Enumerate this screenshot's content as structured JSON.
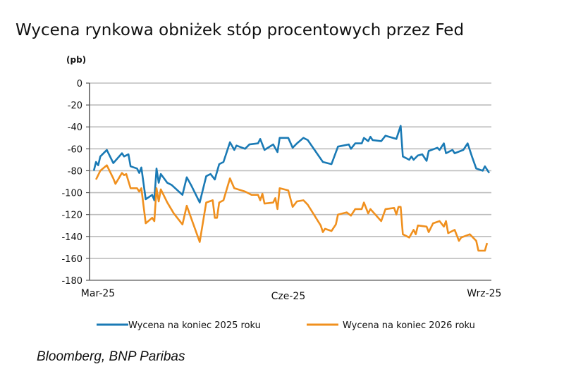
{
  "chart_data": {
    "type": "line",
    "title": "Wycena rynkowa obniżek stóp procentowych przez Fed",
    "ylabel": "(pb)",
    "xlabel": "",
    "ylim": [
      -180,
      0
    ],
    "yticks": [
      0,
      -20,
      -40,
      -60,
      -80,
      -100,
      -120,
      -140,
      -160,
      -180
    ],
    "xlim": [
      "2025-03-01",
      "2025-09-03"
    ],
    "xticks": [
      {
        "date": "2025-03-01",
        "label": "Mar-25"
      },
      {
        "date": "2025-06-01",
        "label": "Cze-25"
      },
      {
        "date": "2025-09-01",
        "label": "Wrz-25"
      }
    ],
    "grid": "horizontal",
    "legend_position": "bottom",
    "source": "Bloomberg, BNP Paribas",
    "series": [
      {
        "name": "Wycena na koniec 2025 roku",
        "color": "#1a7ab5",
        "points": [
          [
            "2025-03-03",
            -80
          ],
          [
            "2025-03-04",
            -72
          ],
          [
            "2025-03-05",
            -75
          ],
          [
            "2025-03-06",
            -67
          ],
          [
            "2025-03-09",
            -61
          ],
          [
            "2025-03-12",
            -73
          ],
          [
            "2025-03-16",
            -64
          ],
          [
            "2025-03-17",
            -67
          ],
          [
            "2025-03-19",
            -65
          ],
          [
            "2025-03-20",
            -76
          ],
          [
            "2025-03-23",
            -78
          ],
          [
            "2025-03-24",
            -82
          ],
          [
            "2025-03-25",
            -77
          ],
          [
            "2025-03-27",
            -106
          ],
          [
            "2025-03-30",
            -102
          ],
          [
            "2025-03-31",
            -107
          ],
          [
            "2025-04-01",
            -78
          ],
          [
            "2025-04-02",
            -91
          ],
          [
            "2025-04-03",
            -83
          ],
          [
            "2025-04-06",
            -91
          ],
          [
            "2025-04-08",
            -93
          ],
          [
            "2025-04-13",
            -102
          ],
          [
            "2025-04-15",
            -86
          ],
          [
            "2025-04-17",
            -93
          ],
          [
            "2025-04-21",
            -109
          ],
          [
            "2025-04-24",
            -85
          ],
          [
            "2025-04-26",
            -83
          ],
          [
            "2025-04-28",
            -88
          ],
          [
            "2025-04-30",
            -74
          ],
          [
            "2025-05-02",
            -72
          ],
          [
            "2025-05-05",
            -54
          ],
          [
            "2025-05-07",
            -61
          ],
          [
            "2025-05-08",
            -57
          ],
          [
            "2025-05-12",
            -60
          ],
          [
            "2025-05-14",
            -56
          ],
          [
            "2025-05-18",
            -55
          ],
          [
            "2025-05-19",
            -51
          ],
          [
            "2025-05-21",
            -61
          ],
          [
            "2025-05-25",
            -56
          ],
          [
            "2025-05-27",
            -63
          ],
          [
            "2025-05-28",
            -50
          ],
          [
            "2025-06-01",
            -50
          ],
          [
            "2025-06-03",
            -59
          ],
          [
            "2025-06-05",
            -55
          ],
          [
            "2025-06-08",
            -50
          ],
          [
            "2025-06-10",
            -52
          ],
          [
            "2025-06-17",
            -72
          ],
          [
            "2025-06-21",
            -74
          ],
          [
            "2025-06-24",
            -58
          ],
          [
            "2025-06-29",
            -56
          ],
          [
            "2025-06-30",
            -60
          ],
          [
            "2025-07-02",
            -55
          ],
          [
            "2025-07-05",
            -55
          ],
          [
            "2025-07-06",
            -50
          ],
          [
            "2025-07-08",
            -53
          ],
          [
            "2025-07-09",
            -49
          ],
          [
            "2025-07-10",
            -52
          ],
          [
            "2025-07-14",
            -53
          ],
          [
            "2025-07-16",
            -48
          ],
          [
            "2025-07-21",
            -51
          ],
          [
            "2025-07-23",
            -39
          ],
          [
            "2025-07-24",
            -67
          ],
          [
            "2025-07-27",
            -70
          ],
          [
            "2025-07-28",
            -67
          ],
          [
            "2025-07-29",
            -70
          ],
          [
            "2025-07-31",
            -66
          ],
          [
            "2025-08-02",
            -65
          ],
          [
            "2025-08-04",
            -71
          ],
          [
            "2025-08-05",
            -62
          ],
          [
            "2025-08-09",
            -59
          ],
          [
            "2025-08-10",
            -61
          ],
          [
            "2025-08-12",
            -55
          ],
          [
            "2025-08-13",
            -64
          ],
          [
            "2025-08-16",
            -61
          ],
          [
            "2025-08-17",
            -64
          ],
          [
            "2025-08-21",
            -61
          ],
          [
            "2025-08-23",
            -55
          ],
          [
            "2025-08-25",
            -67
          ],
          [
            "2025-08-27",
            -78
          ],
          [
            "2025-08-30",
            -80
          ],
          [
            "2025-08-31",
            -76
          ],
          [
            "2025-09-02",
            -82
          ]
        ]
      },
      {
        "name": "Wycena na koniec 2026 roku",
        "color": "#f0901e",
        "points": [
          [
            "2025-03-04",
            -88
          ],
          [
            "2025-03-06",
            -80
          ],
          [
            "2025-03-09",
            -75
          ],
          [
            "2025-03-12",
            -87
          ],
          [
            "2025-03-13",
            -92
          ],
          [
            "2025-03-16",
            -82
          ],
          [
            "2025-03-17",
            -84
          ],
          [
            "2025-03-18",
            -83
          ],
          [
            "2025-03-20",
            -96
          ],
          [
            "2025-03-23",
            -96
          ],
          [
            "2025-03-24",
            -99
          ],
          [
            "2025-03-25",
            -96
          ],
          [
            "2025-03-27",
            -128
          ],
          [
            "2025-03-30",
            -123
          ],
          [
            "2025-03-31",
            -126
          ],
          [
            "2025-04-01",
            -96
          ],
          [
            "2025-04-02",
            -108
          ],
          [
            "2025-04-03",
            -97
          ],
          [
            "2025-04-06",
            -109
          ],
          [
            "2025-04-09",
            -119
          ],
          [
            "2025-04-13",
            -129
          ],
          [
            "2025-04-15",
            -112
          ],
          [
            "2025-04-17",
            -123
          ],
          [
            "2025-04-21",
            -145
          ],
          [
            "2025-04-24",
            -109
          ],
          [
            "2025-04-27",
            -107
          ],
          [
            "2025-04-28",
            -123
          ],
          [
            "2025-04-29",
            -123
          ],
          [
            "2025-04-30",
            -109
          ],
          [
            "2025-05-02",
            -107
          ],
          [
            "2025-05-05",
            -87
          ],
          [
            "2025-05-07",
            -96
          ],
          [
            "2025-05-12",
            -99
          ],
          [
            "2025-05-15",
            -102
          ],
          [
            "2025-05-18",
            -102
          ],
          [
            "2025-05-19",
            -107
          ],
          [
            "2025-05-20",
            -101
          ],
          [
            "2025-05-21",
            -110
          ],
          [
            "2025-05-25",
            -109
          ],
          [
            "2025-05-26",
            -105
          ],
          [
            "2025-05-27",
            -115
          ],
          [
            "2025-05-28",
            -96
          ],
          [
            "2025-06-01",
            -98
          ],
          [
            "2025-06-03",
            -113
          ],
          [
            "2025-06-05",
            -108
          ],
          [
            "2025-06-08",
            -107
          ],
          [
            "2025-06-10",
            -111
          ],
          [
            "2025-06-16",
            -130
          ],
          [
            "2025-06-17",
            -136
          ],
          [
            "2025-06-18",
            -133
          ],
          [
            "2025-06-21",
            -135
          ],
          [
            "2025-06-23",
            -129
          ],
          [
            "2025-06-24",
            -120
          ],
          [
            "2025-06-28",
            -118
          ],
          [
            "2025-06-30",
            -121
          ],
          [
            "2025-07-02",
            -115
          ],
          [
            "2025-07-05",
            -115
          ],
          [
            "2025-07-06",
            -109
          ],
          [
            "2025-07-08",
            -119
          ],
          [
            "2025-07-09",
            -115
          ],
          [
            "2025-07-14",
            -126
          ],
          [
            "2025-07-16",
            -115
          ],
          [
            "2025-07-20",
            -114
          ],
          [
            "2025-07-21",
            -120
          ],
          [
            "2025-07-22",
            -113
          ],
          [
            "2025-07-23",
            -113
          ],
          [
            "2025-07-24",
            -138
          ],
          [
            "2025-07-27",
            -141
          ],
          [
            "2025-07-29",
            -134
          ],
          [
            "2025-07-30",
            -138
          ],
          [
            "2025-07-31",
            -130
          ],
          [
            "2025-08-04",
            -131
          ],
          [
            "2025-08-05",
            -136
          ],
          [
            "2025-08-07",
            -128
          ],
          [
            "2025-08-10",
            -126
          ],
          [
            "2025-08-12",
            -131
          ],
          [
            "2025-08-13",
            -126
          ],
          [
            "2025-08-14",
            -137
          ],
          [
            "2025-08-17",
            -134
          ],
          [
            "2025-08-19",
            -144
          ],
          [
            "2025-08-20",
            -141
          ],
          [
            "2025-08-24",
            -138
          ],
          [
            "2025-08-27",
            -144
          ],
          [
            "2025-08-28",
            -153
          ],
          [
            "2025-08-31",
            -153
          ],
          [
            "2025-09-01",
            -146
          ]
        ]
      }
    ]
  }
}
